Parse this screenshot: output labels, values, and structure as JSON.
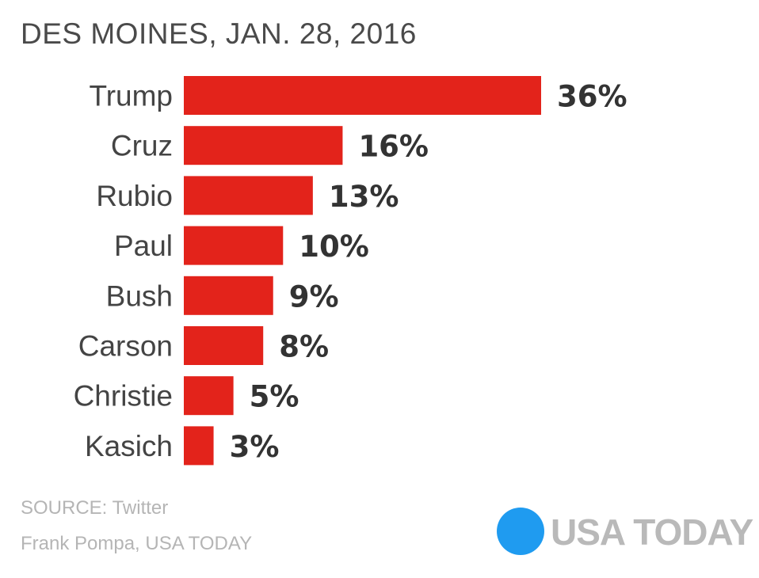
{
  "header": {
    "title": "DES MOINES, JAN. 28, 2016"
  },
  "chart_data": {
    "type": "bar",
    "orientation": "horizontal",
    "title": "DES MOINES, JAN. 28, 2016",
    "categories": [
      "Trump",
      "Cruz",
      "Rubio",
      "Paul",
      "Bush",
      "Carson",
      "Christie",
      "Kasich"
    ],
    "values": [
      36,
      16,
      13,
      10,
      9,
      8,
      5,
      3
    ],
    "value_labels": [
      "36%",
      "16%",
      "13%",
      "10%",
      "9%",
      "8%",
      "5%",
      "3%"
    ],
    "unit": "%",
    "xlabel": "",
    "ylabel": "",
    "xlim": [
      0,
      36
    ],
    "grid": false,
    "bar_color": "#e3231b"
  },
  "footer": {
    "source": "SOURCE:  Twitter",
    "credit": "Frank Pompa, USA TODAY"
  },
  "logo": {
    "text": "USA TODAY",
    "dot_color": "#1f9bf0",
    "icon": "usa-today-dot-icon"
  }
}
